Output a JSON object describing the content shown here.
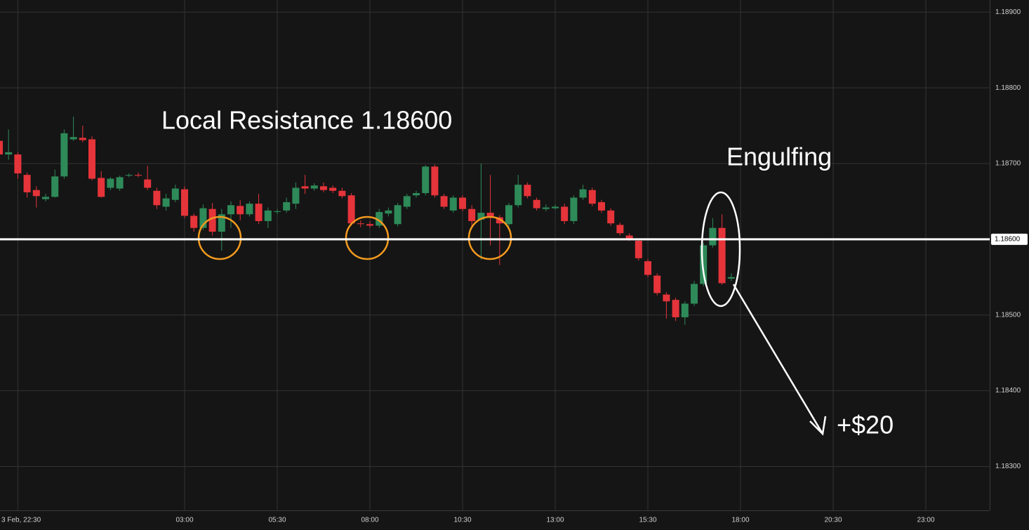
{
  "chart_data": {
    "type": "candlestick",
    "annotations": [
      "Local Resistance 1.18600",
      "Engulfing",
      "+$20"
    ],
    "resistance": {
      "value": 1.186,
      "label": "1.18600"
    },
    "up_color": "#2e8a59",
    "down_color": "#e5343a",
    "grid": true,
    "ylim": [
      1.18242,
      1.18916
    ],
    "yticks": [
      {
        "value": 1.183,
        "label": "1.18300"
      },
      {
        "value": 1.184,
        "label": "1.18400"
      },
      {
        "value": 1.185,
        "label": "1.18500"
      },
      {
        "value": 1.186,
        "label": "1.18600"
      },
      {
        "value": 1.187,
        "label": "1.18700"
      },
      {
        "value": 1.188,
        "label": "1.18800"
      },
      {
        "value": 1.189,
        "label": "1.18900"
      }
    ],
    "xticks": [
      "3 Feb, 22:30",
      "03:00",
      "05:30",
      "08:00",
      "10:30",
      "13:00",
      "15:30",
      "18:00",
      "20:30",
      "23:00"
    ],
    "x": [
      "22:00",
      "22:15",
      "22:30",
      "22:45",
      "23:00",
      "23:15",
      "23:30",
      "23:45",
      "00:00",
      "00:15",
      "00:30",
      "00:45",
      "01:00",
      "01:15",
      "01:30",
      "01:45",
      "02:00",
      "02:15",
      "02:30",
      "02:45",
      "03:00",
      "03:15",
      "03:30",
      "03:45",
      "04:00",
      "04:15",
      "04:30",
      "04:45",
      "05:00",
      "05:15",
      "05:30",
      "05:45",
      "06:00",
      "06:15",
      "06:30",
      "06:45",
      "07:00",
      "07:15",
      "07:30",
      "07:45",
      "08:00",
      "08:15",
      "08:30",
      "08:45",
      "09:00",
      "09:15",
      "09:30",
      "09:45",
      "10:00",
      "10:15",
      "10:30",
      "10:45",
      "11:00",
      "11:15",
      "11:30",
      "11:45",
      "12:00",
      "12:15",
      "12:30",
      "12:45",
      "13:00",
      "13:15",
      "13:30",
      "13:45",
      "14:00",
      "14:15",
      "14:30",
      "14:45",
      "15:00",
      "15:15",
      "15:30",
      "15:45",
      "16:00",
      "16:15",
      "16:30",
      "16:45",
      "17:00",
      "17:15",
      "17:30",
      "17:45"
    ],
    "open": [
      1.1873,
      1.18712,
      1.18712,
      1.18685,
      1.18665,
      1.18653,
      1.18656,
      1.18683,
      1.18732,
      1.18734,
      1.18732,
      1.18681,
      1.18668,
      1.18667,
      1.18684,
      1.18685,
      1.18679,
      1.18664,
      1.18643,
      1.18652,
      1.18666,
      1.18631,
      1.18615,
      1.1864,
      1.1861,
      1.18633,
      1.18644,
      1.18633,
      1.18647,
      1.18624,
      1.18636,
      1.18638,
      1.18647,
      1.1867,
      1.18667,
      1.1867,
      1.18668,
      1.18664,
      1.18658,
      1.18621,
      1.1862,
      1.18618,
      1.18634,
      1.1862,
      1.18643,
      1.18658,
      1.18661,
      1.18696,
      1.18657,
      1.18638,
      1.18655,
      1.1864,
      1.18626,
      1.18635,
      1.18629,
      1.1862,
      1.18645,
      1.18672,
      1.18652,
      1.1864,
      1.18641,
      1.18643,
      1.18624,
      1.18655,
      1.18665,
      1.18649,
      1.18638,
      1.18619,
      1.18605,
      1.18598,
      1.18571,
      1.18552,
      1.18527,
      1.1852,
      1.18497,
      1.18515,
      1.18541,
      1.18592,
      1.18615,
      1.18548
    ],
    "high": [
      1.18735,
      1.18745,
      1.18715,
      1.18688,
      1.1867,
      1.1866,
      1.18692,
      1.18745,
      1.18762,
      1.1875,
      1.18736,
      1.1869,
      1.18682,
      1.18684,
      1.18687,
      1.18688,
      1.18697,
      1.18668,
      1.1866,
      1.18672,
      1.1867,
      1.18634,
      1.18646,
      1.18648,
      1.1864,
      1.1865,
      1.18652,
      1.1865,
      1.1866,
      1.18642,
      1.1864,
      1.18655,
      1.18675,
      1.18685,
      1.18674,
      1.18675,
      1.18671,
      1.18668,
      1.18661,
      1.18625,
      1.18624,
      1.1864,
      1.18642,
      1.18648,
      1.1866,
      1.18664,
      1.18698,
      1.18699,
      1.1866,
      1.18658,
      1.18658,
      1.18645,
      1.187,
      1.18685,
      1.18632,
      1.18648,
      1.18685,
      1.18675,
      1.18655,
      1.18646,
      1.18646,
      1.18647,
      1.18658,
      1.18672,
      1.18668,
      1.18652,
      1.18641,
      1.18622,
      1.18608,
      1.186,
      1.18574,
      1.18555,
      1.1853,
      1.18523,
      1.18518,
      1.18545,
      1.18595,
      1.18628,
      1.18633,
      1.18555
    ],
    "low": [
      1.1871,
      1.18705,
      1.1868,
      1.18655,
      1.18642,
      1.1865,
      1.18655,
      1.1868,
      1.1873,
      1.18728,
      1.18678,
      1.18655,
      1.18665,
      1.18664,
      1.18682,
      1.18682,
      1.18665,
      1.1864,
      1.18638,
      1.18649,
      1.18628,
      1.1861,
      1.18612,
      1.18605,
      1.18585,
      1.18615,
      1.18625,
      1.1863,
      1.1862,
      1.18615,
      1.18633,
      1.18635,
      1.1864,
      1.1866,
      1.18664,
      1.18662,
      1.18661,
      1.18654,
      1.18618,
      1.18616,
      1.18615,
      1.18615,
      1.1863,
      1.18617,
      1.1864,
      1.18655,
      1.18658,
      1.18655,
      1.1864,
      1.18635,
      1.18637,
      1.18618,
      1.18573,
      1.18592,
      1.18566,
      1.18617,
      1.18642,
      1.18654,
      1.18638,
      1.18637,
      1.18639,
      1.1862,
      1.1862,
      1.18652,
      1.18644,
      1.18635,
      1.18618,
      1.18605,
      1.18598,
      1.18572,
      1.1855,
      1.18526,
      1.18495,
      1.18492,
      1.18487,
      1.18512,
      1.18538,
      1.18589,
      1.1854,
      1.18545
    ],
    "close": [
      1.18712,
      1.18715,
      1.18687,
      1.18662,
      1.18657,
      1.18656,
      1.18683,
      1.1874,
      1.18735,
      1.18731,
      1.1868,
      1.18656,
      1.1868,
      1.18682,
      1.18685,
      1.18684,
      1.18668,
      1.18645,
      1.18654,
      1.18667,
      1.18631,
      1.18615,
      1.18641,
      1.1861,
      1.18633,
      1.18645,
      1.18633,
      1.18647,
      1.18624,
      1.18638,
      1.18637,
      1.18649,
      1.18668,
      1.18667,
      1.18671,
      1.18665,
      1.18664,
      1.18657,
      1.18621,
      1.1862,
      1.18618,
      1.18636,
      1.18638,
      1.18645,
      1.18657,
      1.18661,
      1.18696,
      1.18658,
      1.18643,
      1.18655,
      1.1864,
      1.18624,
      1.18635,
      1.18629,
      1.18621,
      1.18645,
      1.18672,
      1.18657,
      1.18641,
      1.18642,
      1.18643,
      1.18624,
      1.18655,
      1.18666,
      1.18647,
      1.18638,
      1.18621,
      1.18608,
      1.18601,
      1.18575,
      1.18553,
      1.18529,
      1.18518,
      1.18497,
      1.18515,
      1.18541,
      1.18592,
      1.18615,
      1.18542,
      1.1855
    ]
  }
}
